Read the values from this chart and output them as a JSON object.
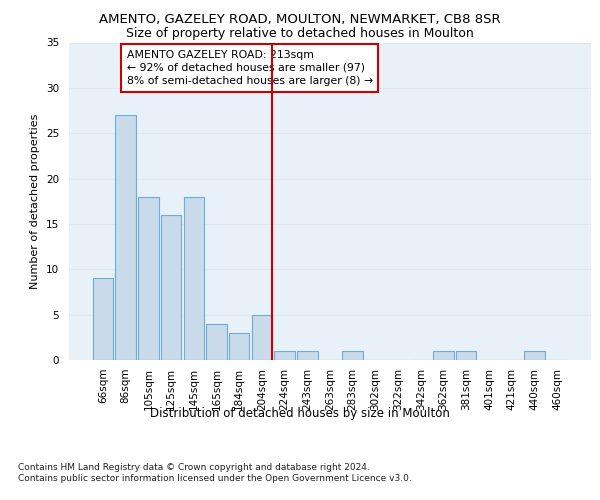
{
  "title1": "AMENTO, GAZELEY ROAD, MOULTON, NEWMARKET, CB8 8SR",
  "title2": "Size of property relative to detached houses in Moulton",
  "xlabel": "Distribution of detached houses by size in Moulton",
  "ylabel": "Number of detached properties",
  "footnote": "Contains HM Land Registry data © Crown copyright and database right 2024.\nContains public sector information licensed under the Open Government Licence v3.0.",
  "categories": [
    "66sqm",
    "86sqm",
    "105sqm",
    "125sqm",
    "145sqm",
    "165sqm",
    "184sqm",
    "204sqm",
    "224sqm",
    "243sqm",
    "263sqm",
    "283sqm",
    "302sqm",
    "322sqm",
    "342sqm",
    "362sqm",
    "381sqm",
    "401sqm",
    "421sqm",
    "440sqm",
    "460sqm"
  ],
  "values": [
    9,
    27,
    18,
    16,
    18,
    4,
    3,
    5,
    1,
    1,
    0,
    1,
    0,
    0,
    0,
    1,
    1,
    0,
    0,
    1,
    0
  ],
  "bar_color": "#c9daea",
  "bar_edge_color": "#6aaed6",
  "grid_color": "#dde8f0",
  "vline_color": "#cc0000",
  "annotation_text": "AMENTO GAZELEY ROAD: 213sqm\n← 92% of detached houses are smaller (97)\n8% of semi-detached houses are larger (8) →",
  "annotation_box_color": "#ffffff",
  "annotation_box_edge": "#cc0000",
  "ylim": [
    0,
    35
  ],
  "yticks": [
    0,
    5,
    10,
    15,
    20,
    25,
    30,
    35
  ],
  "background_color": "#e8f0f8",
  "title1_fontsize": 9.5,
  "title2_fontsize": 9,
  "xlabel_fontsize": 8.5,
  "ylabel_fontsize": 8,
  "tick_fontsize": 7.5,
  "annotation_fontsize": 7.8,
  "footnote_fontsize": 6.5
}
